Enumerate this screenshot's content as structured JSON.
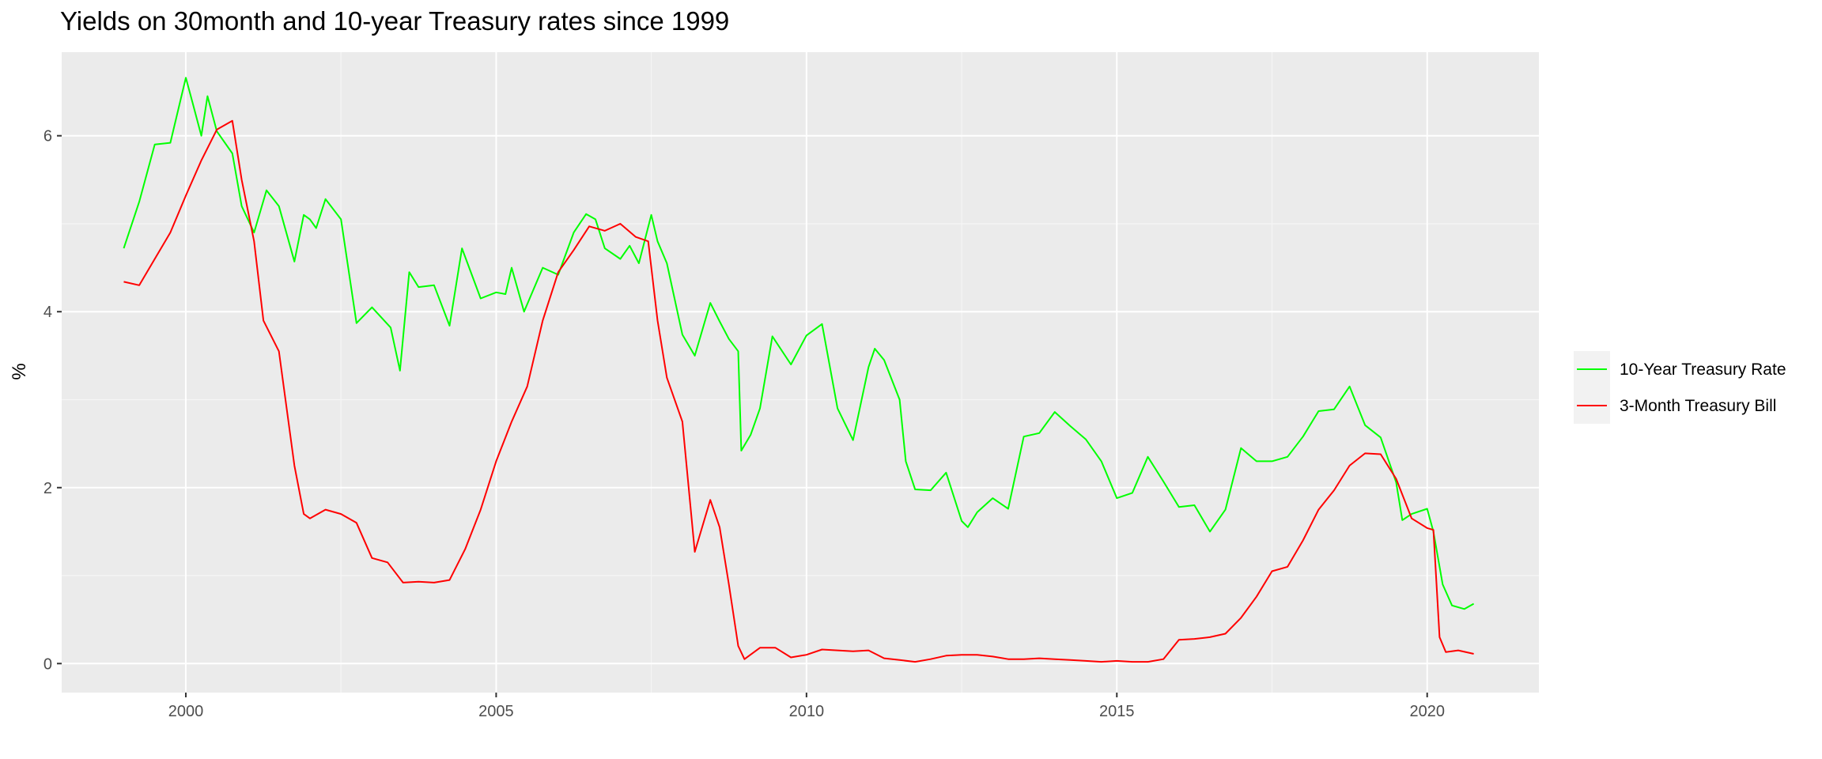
{
  "title": "Yields on 30month and 10-year Treasury rates since 1999",
  "colors": {
    "panel": "#ebebeb",
    "grid_major": "#ffffff",
    "grid_minor": "#f5f5f5",
    "ten_year": "#00ff00",
    "three_month": "#ff0000"
  },
  "chart_data": {
    "type": "line",
    "title": "Yields on 30month and 10-year Treasury rates since 1999",
    "xlabel": "",
    "ylabel": "%",
    "xlim": [
      1998,
      2021.8
    ],
    "ylim": [
      -0.33,
      6.95
    ],
    "x_ticks": [
      "2000",
      "2005",
      "2010",
      "2015",
      "2020"
    ],
    "y_ticks": [
      "0",
      "2",
      "4",
      "6"
    ],
    "grid": true,
    "legend_position": "right",
    "series": [
      {
        "name": "10-Year Treasury Rate",
        "color": "#00ff00",
        "points": [
          [
            1999.0,
            4.72
          ],
          [
            1999.25,
            5.25
          ],
          [
            1999.5,
            5.9
          ],
          [
            1999.75,
            5.92
          ],
          [
            2000.0,
            6.66
          ],
          [
            2000.1,
            6.4
          ],
          [
            2000.25,
            6.0
          ],
          [
            2000.35,
            6.45
          ],
          [
            2000.5,
            6.05
          ],
          [
            2000.75,
            5.8
          ],
          [
            2000.9,
            5.2
          ],
          [
            2001.1,
            4.9
          ],
          [
            2001.3,
            5.38
          ],
          [
            2001.5,
            5.2
          ],
          [
            2001.75,
            4.57
          ],
          [
            2001.9,
            5.1
          ],
          [
            2002.0,
            5.05
          ],
          [
            2002.1,
            4.95
          ],
          [
            2002.25,
            5.28
          ],
          [
            2002.5,
            5.05
          ],
          [
            2002.75,
            3.87
          ],
          [
            2003.0,
            4.05
          ],
          [
            2003.3,
            3.82
          ],
          [
            2003.45,
            3.33
          ],
          [
            2003.6,
            4.45
          ],
          [
            2003.75,
            4.28
          ],
          [
            2004.0,
            4.3
          ],
          [
            2004.25,
            3.84
          ],
          [
            2004.45,
            4.72
          ],
          [
            2004.75,
            4.15
          ],
          [
            2005.0,
            4.22
          ],
          [
            2005.15,
            4.2
          ],
          [
            2005.25,
            4.5
          ],
          [
            2005.45,
            4.0
          ],
          [
            2005.75,
            4.5
          ],
          [
            2006.0,
            4.42
          ],
          [
            2006.25,
            4.9
          ],
          [
            2006.45,
            5.11
          ],
          [
            2006.6,
            5.05
          ],
          [
            2006.75,
            4.72
          ],
          [
            2007.0,
            4.6
          ],
          [
            2007.15,
            4.75
          ],
          [
            2007.3,
            4.55
          ],
          [
            2007.5,
            5.1
          ],
          [
            2007.6,
            4.8
          ],
          [
            2007.75,
            4.55
          ],
          [
            2008.0,
            3.74
          ],
          [
            2008.2,
            3.5
          ],
          [
            2008.45,
            4.1
          ],
          [
            2008.6,
            3.89
          ],
          [
            2008.75,
            3.69
          ],
          [
            2008.9,
            3.55
          ],
          [
            2008.95,
            2.42
          ],
          [
            2009.1,
            2.6
          ],
          [
            2009.25,
            2.9
          ],
          [
            2009.45,
            3.72
          ],
          [
            2009.75,
            3.4
          ],
          [
            2010.0,
            3.73
          ],
          [
            2010.25,
            3.86
          ],
          [
            2010.5,
            2.9
          ],
          [
            2010.75,
            2.54
          ],
          [
            2011.0,
            3.37
          ],
          [
            2011.1,
            3.58
          ],
          [
            2011.25,
            3.45
          ],
          [
            2011.5,
            3.0
          ],
          [
            2011.6,
            2.3
          ],
          [
            2011.75,
            1.98
          ],
          [
            2012.0,
            1.97
          ],
          [
            2012.25,
            2.17
          ],
          [
            2012.5,
            1.62
          ],
          [
            2012.6,
            1.55
          ],
          [
            2012.75,
            1.72
          ],
          [
            2013.0,
            1.88
          ],
          [
            2013.25,
            1.76
          ],
          [
            2013.5,
            2.58
          ],
          [
            2013.75,
            2.62
          ],
          [
            2014.0,
            2.86
          ],
          [
            2014.25,
            2.7
          ],
          [
            2014.5,
            2.55
          ],
          [
            2014.75,
            2.3
          ],
          [
            2015.0,
            1.88
          ],
          [
            2015.25,
            1.94
          ],
          [
            2015.5,
            2.35
          ],
          [
            2015.75,
            2.07
          ],
          [
            2016.0,
            1.78
          ],
          [
            2016.25,
            1.8
          ],
          [
            2016.5,
            1.5
          ],
          [
            2016.75,
            1.75
          ],
          [
            2017.0,
            2.45
          ],
          [
            2017.25,
            2.3
          ],
          [
            2017.5,
            2.3
          ],
          [
            2017.75,
            2.35
          ],
          [
            2018.0,
            2.58
          ],
          [
            2018.25,
            2.87
          ],
          [
            2018.5,
            2.89
          ],
          [
            2018.75,
            3.15
          ],
          [
            2019.0,
            2.71
          ],
          [
            2019.25,
            2.57
          ],
          [
            2019.5,
            2.06
          ],
          [
            2019.6,
            1.63
          ],
          [
            2019.75,
            1.7
          ],
          [
            2020.0,
            1.76
          ],
          [
            2020.1,
            1.5
          ],
          [
            2020.25,
            0.9
          ],
          [
            2020.4,
            0.66
          ],
          [
            2020.6,
            0.62
          ],
          [
            2020.75,
            0.68
          ]
        ]
      },
      {
        "name": "3-Month Treasury Bill",
        "color": "#ff0000",
        "points": [
          [
            1999.0,
            4.34
          ],
          [
            1999.25,
            4.3
          ],
          [
            1999.5,
            4.6
          ],
          [
            1999.75,
            4.9
          ],
          [
            2000.0,
            5.32
          ],
          [
            2000.25,
            5.72
          ],
          [
            2000.5,
            6.07
          ],
          [
            2000.75,
            6.17
          ],
          [
            2000.9,
            5.5
          ],
          [
            2001.1,
            4.8
          ],
          [
            2001.25,
            3.9
          ],
          [
            2001.5,
            3.55
          ],
          [
            2001.75,
            2.25
          ],
          [
            2001.9,
            1.7
          ],
          [
            2002.0,
            1.65
          ],
          [
            2002.25,
            1.75
          ],
          [
            2002.5,
            1.7
          ],
          [
            2002.75,
            1.6
          ],
          [
            2003.0,
            1.2
          ],
          [
            2003.25,
            1.15
          ],
          [
            2003.5,
            0.92
          ],
          [
            2003.75,
            0.93
          ],
          [
            2004.0,
            0.92
          ],
          [
            2004.25,
            0.95
          ],
          [
            2004.5,
            1.3
          ],
          [
            2004.75,
            1.75
          ],
          [
            2005.0,
            2.3
          ],
          [
            2005.25,
            2.75
          ],
          [
            2005.5,
            3.15
          ],
          [
            2005.75,
            3.9
          ],
          [
            2006.0,
            4.45
          ],
          [
            2006.25,
            4.7
          ],
          [
            2006.5,
            4.97
          ],
          [
            2006.75,
            4.92
          ],
          [
            2007.0,
            5.0
          ],
          [
            2007.25,
            4.85
          ],
          [
            2007.45,
            4.8
          ],
          [
            2007.6,
            3.9
          ],
          [
            2007.75,
            3.25
          ],
          [
            2008.0,
            2.75
          ],
          [
            2008.2,
            1.27
          ],
          [
            2008.45,
            1.86
          ],
          [
            2008.6,
            1.55
          ],
          [
            2008.75,
            0.9
          ],
          [
            2008.9,
            0.2
          ],
          [
            2009.0,
            0.05
          ],
          [
            2009.25,
            0.18
          ],
          [
            2009.5,
            0.18
          ],
          [
            2009.75,
            0.07
          ],
          [
            2010.0,
            0.1
          ],
          [
            2010.25,
            0.16
          ],
          [
            2010.5,
            0.15
          ],
          [
            2010.75,
            0.14
          ],
          [
            2011.0,
            0.15
          ],
          [
            2011.25,
            0.06
          ],
          [
            2011.5,
            0.04
          ],
          [
            2011.75,
            0.02
          ],
          [
            2012.0,
            0.05
          ],
          [
            2012.25,
            0.09
          ],
          [
            2012.5,
            0.1
          ],
          [
            2012.75,
            0.1
          ],
          [
            2013.0,
            0.08
          ],
          [
            2013.25,
            0.05
          ],
          [
            2013.5,
            0.05
          ],
          [
            2013.75,
            0.06
          ],
          [
            2014.0,
            0.05
          ],
          [
            2014.25,
            0.04
          ],
          [
            2014.5,
            0.03
          ],
          [
            2014.75,
            0.02
          ],
          [
            2015.0,
            0.03
          ],
          [
            2015.25,
            0.02
          ],
          [
            2015.5,
            0.02
          ],
          [
            2015.75,
            0.05
          ],
          [
            2016.0,
            0.27
          ],
          [
            2016.25,
            0.28
          ],
          [
            2016.5,
            0.3
          ],
          [
            2016.75,
            0.34
          ],
          [
            2017.0,
            0.52
          ],
          [
            2017.25,
            0.76
          ],
          [
            2017.5,
            1.05
          ],
          [
            2017.75,
            1.1
          ],
          [
            2018.0,
            1.4
          ],
          [
            2018.25,
            1.75
          ],
          [
            2018.5,
            1.97
          ],
          [
            2018.75,
            2.25
          ],
          [
            2019.0,
            2.39
          ],
          [
            2019.25,
            2.38
          ],
          [
            2019.5,
            2.1
          ],
          [
            2019.75,
            1.65
          ],
          [
            2020.0,
            1.54
          ],
          [
            2020.1,
            1.52
          ],
          [
            2020.2,
            0.3
          ],
          [
            2020.3,
            0.13
          ],
          [
            2020.5,
            0.15
          ],
          [
            2020.75,
            0.11
          ]
        ]
      }
    ]
  },
  "legend": {
    "items": [
      {
        "label": "10-Year Treasury Rate",
        "color": "#00ff00"
      },
      {
        "label": "3-Month Treasury Bill",
        "color": "#ff0000"
      }
    ]
  }
}
